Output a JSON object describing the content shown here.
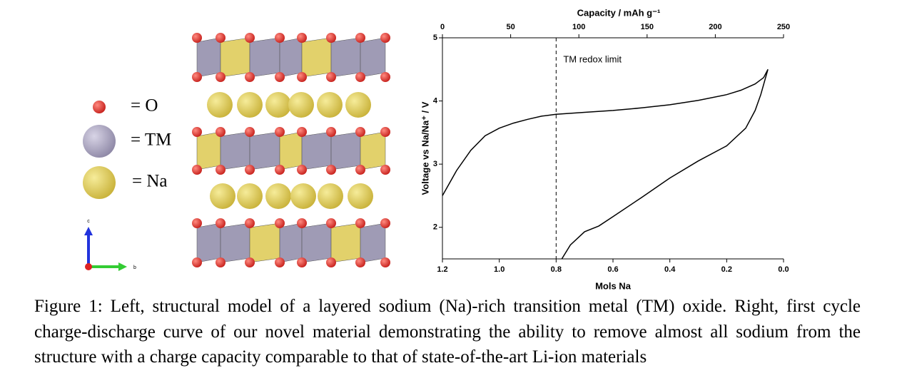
{
  "figure": {
    "legend": [
      "= O",
      "= TM",
      "= Na"
    ],
    "axis_c": "c",
    "axis_b": "b"
  },
  "chart_data": {
    "type": "line",
    "x_label": "Mols Na",
    "x2_label": "Capacity / mAh g⁻¹",
    "y_label": "Voltage vs Na/Na⁺ / V",
    "xlim": [
      1.2,
      0.0
    ],
    "xticks": [
      {
        "value": 1.2,
        "label": "1.2"
      },
      {
        "value": 1.0,
        "label": "1.0"
      },
      {
        "value": 0.8,
        "label": "0.8"
      },
      {
        "value": 0.6,
        "label": "0.6"
      },
      {
        "value": 0.4,
        "label": "0.4"
      },
      {
        "value": 0.2,
        "label": "0.2"
      },
      {
        "value": 0.0,
        "label": "0.0"
      }
    ],
    "x2lim": [
      0,
      250
    ],
    "x2ticks": [
      0,
      50,
      100,
      150,
      200,
      250
    ],
    "ylim": [
      1.5,
      5
    ],
    "yticks": [
      2,
      3,
      4,
      5
    ],
    "reference_line": {
      "x": 0.8,
      "label": "TM redox limit"
    },
    "series": [
      {
        "color": "#000000",
        "x": [
          1.2,
          1.15,
          1.1,
          1.05,
          1.0,
          0.95,
          0.9,
          0.85,
          0.8,
          0.7,
          0.6,
          0.5,
          0.4,
          0.3,
          0.2,
          0.15,
          0.1,
          0.07,
          0.055
        ],
        "values": [
          2.5,
          2.9,
          3.22,
          3.45,
          3.57,
          3.65,
          3.71,
          3.76,
          3.79,
          3.82,
          3.85,
          3.89,
          3.94,
          4.01,
          4.1,
          4.17,
          4.27,
          4.37,
          4.5
        ]
      },
      {
        "color": "#000000",
        "x": [
          0.055,
          0.08,
          0.1,
          0.133,
          0.2,
          0.3,
          0.4,
          0.5,
          0.6,
          0.65,
          0.7,
          0.75,
          0.78
        ],
        "values": [
          4.5,
          4.1,
          3.85,
          3.57,
          3.29,
          3.05,
          2.78,
          2.47,
          2.17,
          2.02,
          1.93,
          1.72,
          1.5
        ]
      }
    ]
  },
  "caption": "Figure 1: Left, structural model of a layered sodium (Na)-rich transition metal (TM) oxide. Right, first cycle charge-discharge curve of our novel material demonstrating the ability to remove almost all sodium from the structure with a charge capacity comparable to that of state-of-the-art Li-ion materials"
}
